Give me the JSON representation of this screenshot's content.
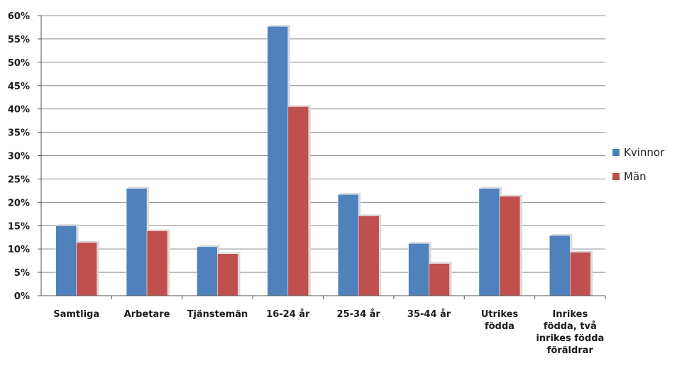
{
  "chart_data": {
    "type": "bar",
    "categories": [
      [
        "Samtliga"
      ],
      [
        "Arbetare"
      ],
      [
        "Tjänstemän"
      ],
      [
        "16-24  år"
      ],
      [
        "25-34 år"
      ],
      [
        "35-44 år"
      ],
      [
        "Utrikes",
        "födda"
      ],
      [
        "Inrikes",
        "födda, två",
        "inrikes födda",
        "föräldrar"
      ]
    ],
    "series": [
      {
        "name": "Kvinnor",
        "color": "#4f81bd",
        "values": [
          15,
          23,
          10.5,
          57.7,
          21.7,
          11.2,
          23,
          12.9
        ]
      },
      {
        "name": "Män",
        "color": "#c0504d",
        "values": [
          11.4,
          13.9,
          9,
          40.5,
          17.1,
          6.9,
          21.3,
          9.3
        ]
      }
    ],
    "ylim": [
      0,
      60
    ],
    "yticks": [
      "0%",
      "5%",
      "10%",
      "15%",
      "20%",
      "25%",
      "30%",
      "35%",
      "40%",
      "45%",
      "50%",
      "55%",
      "60%"
    ],
    "grid": true,
    "legend": "right",
    "title": "",
    "xlabel": "",
    "ylabel": ""
  }
}
